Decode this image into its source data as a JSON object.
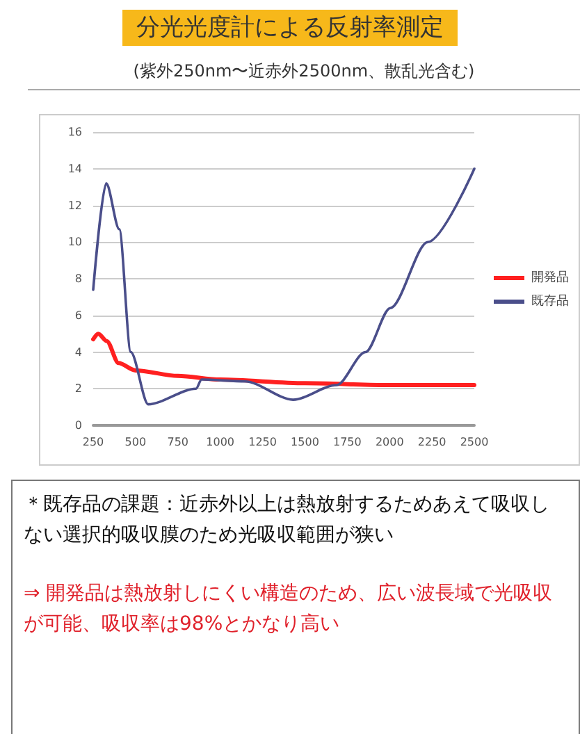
{
  "chart_data": {
    "type": "line",
    "title": "分光光度計による反射率測定",
    "subtitle": "(紫外250nm〜近赤外2500nm、散乱光含む)",
    "xlim": [
      250,
      2500
    ],
    "xticks": [
      250,
      500,
      750,
      1000,
      1250,
      1500,
      1750,
      2000,
      2250,
      2500
    ],
    "ylim": [
      0,
      16
    ],
    "yticks": [
      0,
      2,
      4,
      6,
      8,
      10,
      12,
      14,
      16
    ],
    "grid": "y",
    "legend": "right",
    "marker": "none",
    "line_style": "solid",
    "series": [
      {
        "name": "開発品",
        "color": "#ff2020",
        "x": [
          250,
          280,
          330,
          400,
          500,
          750,
          1000,
          1500,
          2000,
          2500
        ],
        "values": [
          4.7,
          5.0,
          4.6,
          3.4,
          3.0,
          2.7,
          2.5,
          2.3,
          2.2,
          2.2
        ]
      },
      {
        "name": "既存品",
        "color": "#4a4e8a",
        "x": [
          250,
          327,
          404,
          472,
          575,
          857,
          890,
          1147,
          1430,
          1687,
          1858,
          2004,
          2226,
          2500
        ],
        "values": [
          7.4,
          13.2,
          10.7,
          4.0,
          1.15,
          2.0,
          2.5,
          2.4,
          1.4,
          2.2,
          4.0,
          6.4,
          10.0,
          14.0
        ]
      }
    ],
    "annotations": [
      "＊既存品の課題：近赤外以上は熱放射するためあえて吸収しない選択的吸収膜のため光吸収範囲が狭い",
      "⇒ 開発品は熱放射しにくい構造のため、広い波長域で光吸収が可能、吸収率は98%とかなり高い"
    ]
  }
}
